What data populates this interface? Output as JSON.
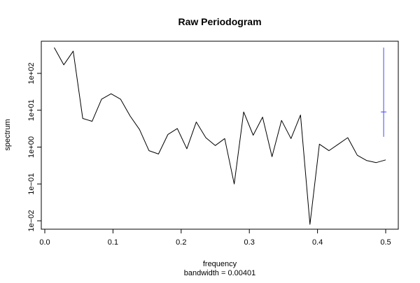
{
  "chart_data": {
    "type": "line",
    "title": "Raw Periodogram",
    "xlabel": "frequency",
    "sublabel": "bandwidth = 0.00401",
    "ylabel": "spectrum",
    "y_scale": "log10",
    "xlim": [
      0.0,
      0.5
    ],
    "ylim": [
      0.005,
      700
    ],
    "x_ticks": [
      {
        "value": 0.0,
        "label": "0.0"
      },
      {
        "value": 0.1,
        "label": "0.1"
      },
      {
        "value": 0.2,
        "label": "0.2"
      },
      {
        "value": 0.3,
        "label": "0.3"
      },
      {
        "value": 0.4,
        "label": "0.4"
      },
      {
        "value": 0.5,
        "label": "0.5"
      }
    ],
    "y_ticks": [
      {
        "value": 0.01,
        "label": "1e−02"
      },
      {
        "value": 0.1,
        "label": "1e−01"
      },
      {
        "value": 1,
        "label": "1e+00"
      },
      {
        "value": 10,
        "label": "1e+01"
      },
      {
        "value": 100,
        "label": "1e+02"
      }
    ],
    "grid": false,
    "series": [
      {
        "color": "#000000",
        "x": [
          0.0139,
          0.0278,
          0.0417,
          0.0556,
          0.0694,
          0.0833,
          0.0972,
          0.1111,
          0.125,
          0.1389,
          0.1528,
          0.1667,
          0.1806,
          0.1944,
          0.2083,
          0.2222,
          0.2361,
          0.25,
          0.2639,
          0.2778,
          0.2917,
          0.3056,
          0.3194,
          0.3333,
          0.3472,
          0.3611,
          0.375,
          0.3889,
          0.4028,
          0.4167,
          0.4306,
          0.4444,
          0.4583,
          0.4722,
          0.4861,
          0.5
        ],
        "y": [
          500,
          170,
          400,
          6,
          5,
          20,
          28,
          20,
          7,
          3,
          0.8,
          0.65,
          2.2,
          3.2,
          0.9,
          4.8,
          1.8,
          1.1,
          1.7,
          0.1,
          9,
          2.1,
          6.5,
          0.55,
          5.3,
          1.7,
          7.4,
          0.008,
          1.2,
          0.8,
          1.2,
          1.8,
          0.6,
          0.43,
          0.38,
          0.45
        ]
      }
    ],
    "confidence_bar": {
      "color": "#4444ff",
      "x": 0.497,
      "center": 9,
      "lower": 1.9,
      "upper": 500
    }
  }
}
